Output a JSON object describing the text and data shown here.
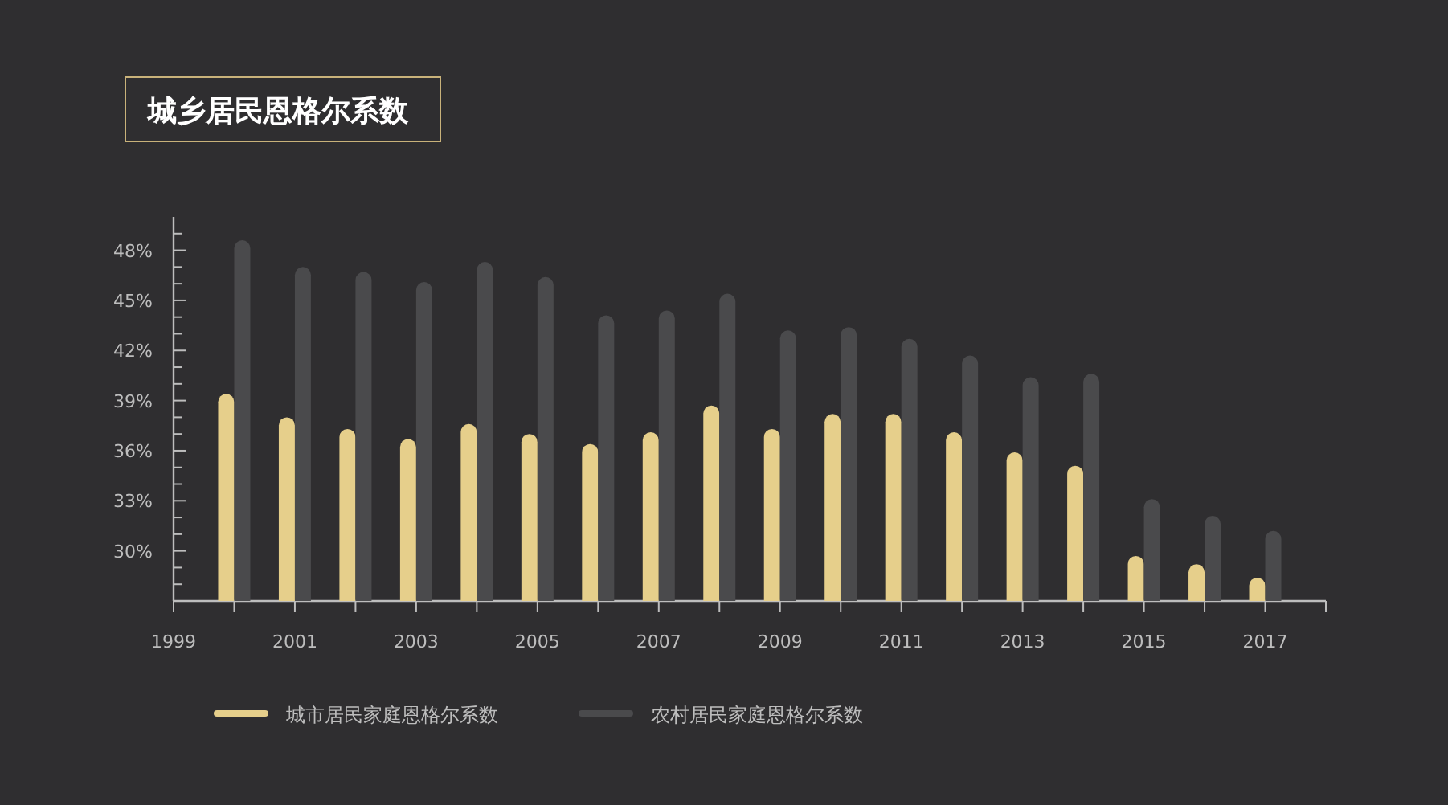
{
  "chart_data": {
    "type": "bar",
    "title": "城乡居民恩格尔系数",
    "x": [
      2000,
      2001,
      2002,
      2003,
      2004,
      2005,
      2006,
      2007,
      2008,
      2009,
      2010,
      2011,
      2012,
      2013,
      2014,
      2015,
      2016,
      2017
    ],
    "series": [
      {
        "name": "城市居民家庭恩格尔系数",
        "color": "#e6cf8b",
        "values": [
          39.4,
          38.0,
          37.3,
          36.7,
          37.6,
          37.0,
          36.4,
          37.1,
          38.7,
          37.3,
          38.2,
          38.2,
          37.1,
          35.9,
          35.1,
          29.7,
          29.2,
          28.4
        ]
      },
      {
        "name": "农村居民家庭恩格尔系数",
        "color": "#4a4a4c",
        "values": [
          48.6,
          47.0,
          46.7,
          46.1,
          47.3,
          46.4,
          44.1,
          44.4,
          45.4,
          43.2,
          43.4,
          42.7,
          41.7,
          40.4,
          40.6,
          33.1,
          32.1,
          31.2
        ]
      }
    ],
    "xlim": [
      1999,
      2018
    ],
    "xticks": [
      1999,
      {
        "value": 2000,
        "label": null
      },
      2001,
      {
        "value": 2002,
        "label": null
      },
      2003,
      {
        "value": 2004,
        "label": null
      },
      2005,
      {
        "value": 2006,
        "label": null
      },
      2007,
      {
        "value": 2008,
        "label": null
      },
      2009,
      {
        "value": 2010,
        "label": null
      },
      2011,
      {
        "value": 2012,
        "label": null
      },
      2013,
      {
        "value": 2014,
        "label": null
      },
      2015,
      {
        "value": 2016,
        "label": null
      },
      2017,
      {
        "value": 2018,
        "label": null
      }
    ],
    "ylim": [
      27,
      50
    ],
    "yticks": [
      {
        "value": 28,
        "label": null
      },
      {
        "value": 29,
        "label": null
      },
      {
        "value": 30,
        "label": "30%"
      },
      {
        "value": 31,
        "label": null
      },
      {
        "value": 32,
        "label": null
      },
      {
        "value": 33,
        "label": "33%"
      },
      {
        "value": 34,
        "label": null
      },
      {
        "value": 35,
        "label": null
      },
      {
        "value": 36,
        "label": "36%"
      },
      {
        "value": 37,
        "label": null
      },
      {
        "value": 38,
        "label": null
      },
      {
        "value": 39,
        "label": "39%"
      },
      {
        "value": 40,
        "label": null
      },
      {
        "value": 41,
        "label": null
      },
      {
        "value": 42,
        "label": "42%"
      },
      {
        "value": 43,
        "label": null
      },
      {
        "value": 44,
        "label": null
      },
      {
        "value": 45,
        "label": "45%"
      },
      {
        "value": 46,
        "label": null
      },
      {
        "value": 47,
        "label": null
      },
      {
        "value": 48,
        "label": "48%"
      },
      {
        "value": 49,
        "label": null
      }
    ],
    "grid": false,
    "legend": "bottom"
  }
}
